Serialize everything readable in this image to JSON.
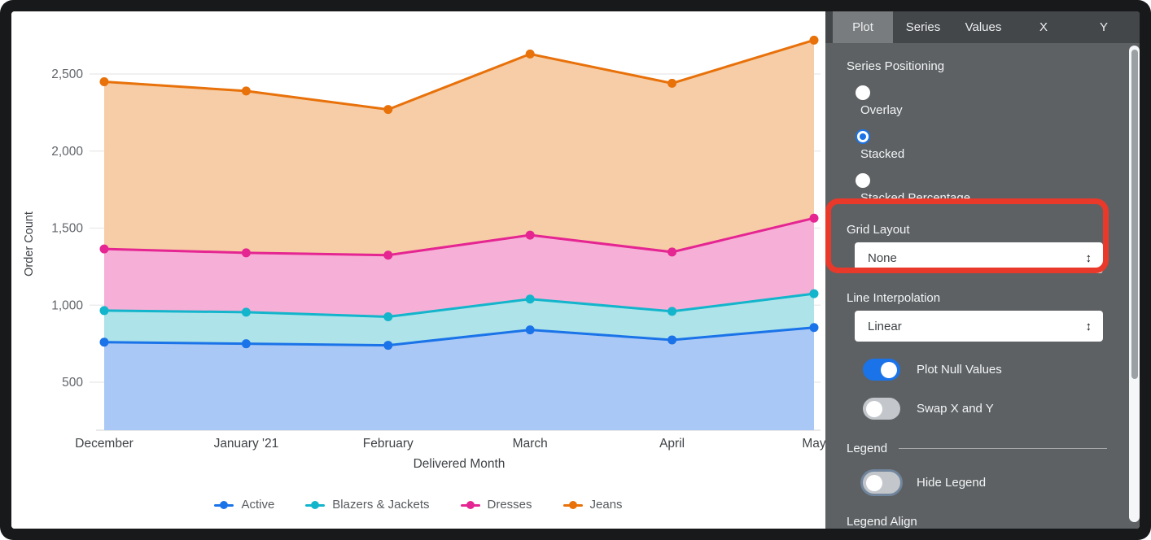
{
  "panel": {
    "tabs": [
      {
        "label": "Plot",
        "active": true
      },
      {
        "label": "Series",
        "active": false
      },
      {
        "label": "Values",
        "active": false
      },
      {
        "label": "X",
        "active": false
      },
      {
        "label": "Y",
        "active": false
      }
    ],
    "series_positioning": {
      "label": "Series Positioning",
      "options": [
        {
          "label": "Overlay",
          "selected": false
        },
        {
          "label": "Stacked",
          "selected": true
        },
        {
          "label": "Stacked Percentage",
          "selected": false
        }
      ]
    },
    "grid_layout": {
      "label": "Grid Layout",
      "value": "None"
    },
    "line_interpolation": {
      "label": "Line Interpolation",
      "value": "Linear"
    },
    "plot_null_values": {
      "label": "Plot Null Values",
      "on": true
    },
    "swap_x_y": {
      "label": "Swap X and Y",
      "on": false
    },
    "legend": {
      "header": "Legend",
      "hide_legend_label": "Hide Legend",
      "hide_legend_on": false,
      "align_label": "Legend Align"
    },
    "select_arrow_glyph": "↕"
  },
  "annotation": {
    "shape": "red-rounded-rectangle",
    "color": "#e8392b",
    "around": "Grid Layout"
  },
  "chart_data": {
    "type": "area",
    "stacking": "stacked",
    "title": "",
    "xlabel": "Delivered Month",
    "ylabel": "Order Count",
    "x": [
      "December",
      "January '21",
      "February",
      "March",
      "April",
      "May"
    ],
    "series": [
      {
        "name": "Active",
        "color": "#1A73E8",
        "fill": "#a9c8f6",
        "values": [
          760,
          750,
          740,
          840,
          775,
          855
        ]
      },
      {
        "name": "Blazers & Jackets",
        "color": "#12B5CB",
        "fill": "#aee3ea",
        "values": [
          205,
          205,
          185,
          200,
          185,
          220
        ]
      },
      {
        "name": "Dresses",
        "color": "#E52592",
        "fill": "#f6afd6",
        "values": [
          400,
          385,
          400,
          415,
          385,
          490
        ]
      },
      {
        "name": "Jeans",
        "color": "#E8710A",
        "fill": "#f6cda7",
        "values": [
          1085,
          1050,
          945,
          1175,
          1095,
          1155
        ]
      }
    ],
    "stacked_totals": {
      "Active": [
        760,
        750,
        740,
        840,
        775,
        855
      ],
      "Blazers & Jackets": [
        965,
        955,
        925,
        1040,
        960,
        1075
      ],
      "Dresses": [
        1365,
        1340,
        1325,
        1455,
        1345,
        1565
      ],
      "Jeans": [
        2450,
        2390,
        2270,
        2630,
        2440,
        2720
      ]
    },
    "y_ticks": [
      500,
      1000,
      1500,
      2000,
      2500
    ],
    "ylim": [
      189,
      2822
    ],
    "grid": true,
    "legend_position": "bottom",
    "marker": "circle"
  }
}
